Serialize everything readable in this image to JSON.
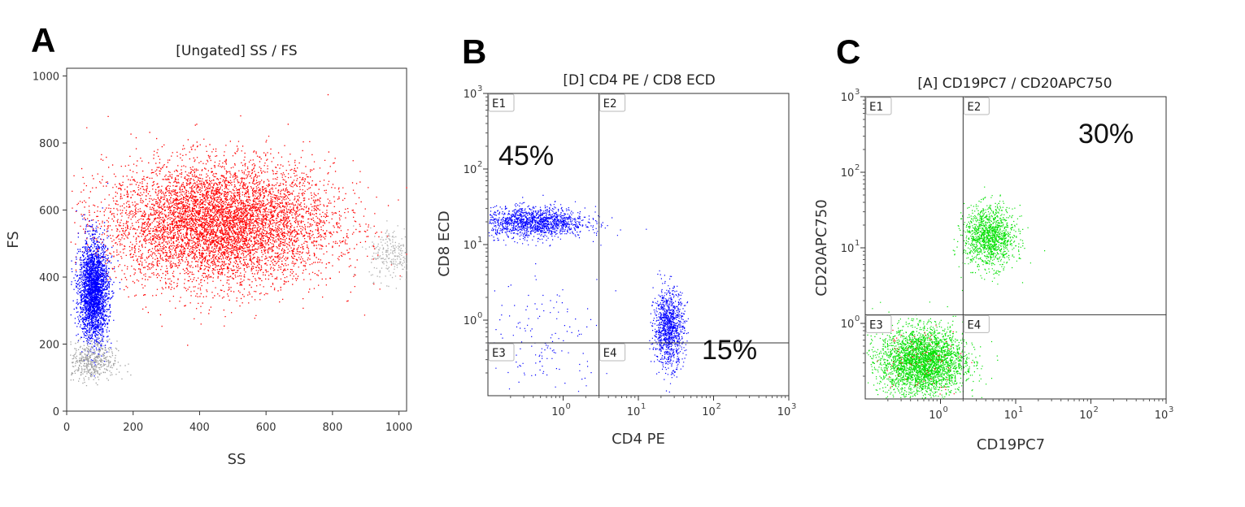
{
  "chart_data": [
    {
      "panel": "A",
      "type": "scatter",
      "title": "[Ungated] SS / FS",
      "xlabel": "SS",
      "ylabel": "FS",
      "xlim": [
        0,
        1023
      ],
      "ylim": [
        0,
        1023
      ],
      "xticks": [
        "0",
        "200",
        "400",
        "600",
        "800",
        "1000"
      ],
      "yticks": [
        "0",
        "200",
        "400",
        "600",
        "800",
        "1000"
      ],
      "xtick_values": [
        0,
        200,
        400,
        600,
        800,
        1000
      ],
      "ytick_values": [
        0,
        200,
        400,
        600,
        800,
        1000
      ],
      "populations": [
        {
          "color": "#ff0000",
          "points": 9000,
          "center": [
            460,
            560
          ],
          "spread": [
            170,
            90
          ]
        },
        {
          "color": "#0000ff",
          "points": 2600,
          "center": [
            80,
            360
          ],
          "spread": [
            22,
            75
          ]
        },
        {
          "color": "#a0a0a0",
          "points": 500,
          "center": [
            70,
            150
          ],
          "spread": [
            40,
            30
          ]
        },
        {
          "color": "#b0b0b0",
          "points": 250,
          "center": [
            980,
            470
          ],
          "spread": [
            35,
            40
          ]
        }
      ]
    },
    {
      "panel": "B",
      "type": "scatter",
      "title": "[D] CD4 PE / CD8 ECD",
      "xlabel": "CD4 PE",
      "ylabel": "CD8 ECD",
      "scale": "log",
      "xlim": [
        0.1,
        1000
      ],
      "ylim": [
        0.1,
        1000
      ],
      "tick_base": "10",
      "tick_exponents": [
        "0",
        "1",
        "2",
        "3"
      ],
      "quadrant_gate": {
        "x": 3,
        "y": 0.5
      },
      "quadrant_labels": [
        "E1",
        "E2",
        "E3",
        "E4"
      ],
      "annotations": [
        {
          "text": "45%",
          "quadrant": "E1"
        },
        {
          "text": "15%",
          "quadrant": "E4"
        }
      ],
      "populations": [
        {
          "color": "#0000ff",
          "points": 1500,
          "center_log": [
            -0.4,
            1.3
          ],
          "spread_log": [
            0.35,
            0.1
          ]
        },
        {
          "color": "#0000ff",
          "points": 1100,
          "center_log": [
            1.4,
            -0.1
          ],
          "spread_log": [
            0.1,
            0.25
          ]
        },
        {
          "color": "#0000ff",
          "points": 160,
          "center_log": [
            -0.3,
            -0.3
          ],
          "spread_log": [
            0.4,
            0.4
          ]
        }
      ]
    },
    {
      "panel": "C",
      "type": "scatter",
      "title": "[A] CD19PC7 / CD20APC750",
      "xlabel": "CD19PC7",
      "ylabel": "CD20APC750",
      "scale": "log",
      "xlim": [
        0.1,
        1000
      ],
      "ylim": [
        0.1,
        1000
      ],
      "tick_base": "10",
      "tick_exponents": [
        "0",
        "1",
        "2",
        "3"
      ],
      "quadrant_gate": {
        "x": 2,
        "y": 1.3
      },
      "quadrant_labels": [
        "E1",
        "E2",
        "E3",
        "E4"
      ],
      "annotations": [
        {
          "text": "30%",
          "quadrant": "E2"
        }
      ],
      "populations": [
        {
          "color": "#00e000",
          "points": 3200,
          "center_log": [
            -0.25,
            -0.5
          ],
          "spread_log": [
            0.28,
            0.22
          ]
        },
        {
          "color": "#00e000",
          "points": 1300,
          "center_log": [
            0.65,
            1.15
          ],
          "spread_log": [
            0.17,
            0.2
          ]
        },
        {
          "color": "#ff0000",
          "points": 90,
          "center_log": [
            -0.3,
            -0.45
          ],
          "spread_log": [
            0.3,
            0.22
          ]
        }
      ]
    }
  ]
}
